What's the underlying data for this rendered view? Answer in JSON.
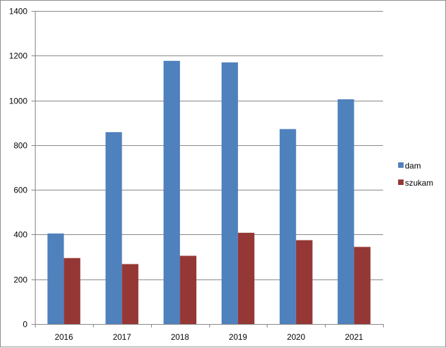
{
  "chart_data": {
    "type": "bar",
    "categories": [
      "2016",
      "2017",
      "2018",
      "2019",
      "2020",
      "2021"
    ],
    "series": [
      {
        "name": "dam",
        "values": [
          405,
          858,
          1177,
          1170,
          872,
          1005
        ],
        "color": "#4F81BD"
      },
      {
        "name": "szukam",
        "values": [
          295,
          268,
          305,
          408,
          375,
          345
        ],
        "color": "#953735"
      }
    ],
    "ylim": [
      0,
      1400
    ],
    "yticks": [
      0,
      200,
      400,
      600,
      800,
      1000,
      1200,
      1400
    ],
    "grid": true,
    "legend_position": "right",
    "title": "",
    "xlabel": "",
    "ylabel": ""
  }
}
